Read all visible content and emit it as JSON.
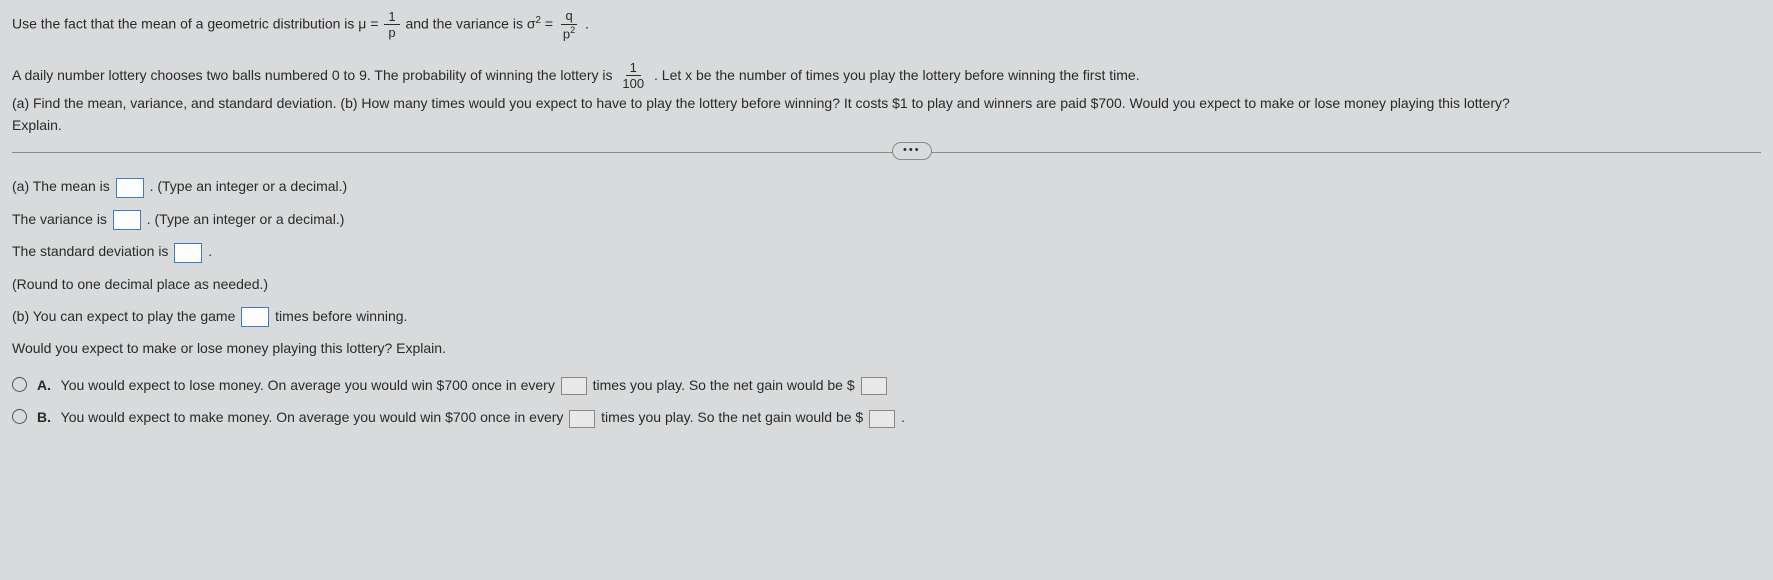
{
  "intro": {
    "prefix": "Use the fact that the mean of a geometric distribution is μ = ",
    "mean_frac_num": "1",
    "mean_frac_den": "p",
    "middle": " and the variance is σ",
    "sup": "2",
    "eq": " = ",
    "var_frac_num": "q",
    "var_frac_den": "p",
    "var_den_sup": "2",
    "end": "."
  },
  "problem": {
    "line1_a": "A daily number lottery chooses two balls numbered 0 to 9. The probability of winning the lottery is ",
    "prob_num": "1",
    "prob_den": "100",
    "line1_b": ". Let x be the number of times you play the lottery before winning the first time.",
    "line2": "(a) Find the mean, variance, and standard deviation. (b) How many times would you expect to have to play the lottery before winning? It costs $1 to play and winners are paid $700. Would you expect to make or lose money playing this lottery?",
    "line3": "Explain."
  },
  "ellipsis": "•••",
  "partA": {
    "mean_label": "(a) The mean is ",
    "mean_hint": ". (Type an integer or a decimal.)",
    "variance_label": "The variance is ",
    "variance_hint": ". (Type an integer or a decimal.)",
    "sd_label": "The standard deviation is ",
    "sd_hint": ".",
    "sd_round": "(Round to one decimal place as needed.)"
  },
  "partB": {
    "expect_a": "(b) You can expect to play the game ",
    "expect_b": " times before winning.",
    "question": "Would you expect to make or lose money playing this lottery? Explain."
  },
  "options": {
    "A": {
      "label": "A.",
      "text_a": "You would expect to lose money. On average you would win $700 once in every ",
      "text_b": " times you play. So the net gain would be $"
    },
    "B": {
      "label": "B.",
      "text_a": "You would expect to make money. On average you would win $700 once in every ",
      "text_b": " times you play. So the net gain would be $",
      "text_c": "."
    }
  }
}
